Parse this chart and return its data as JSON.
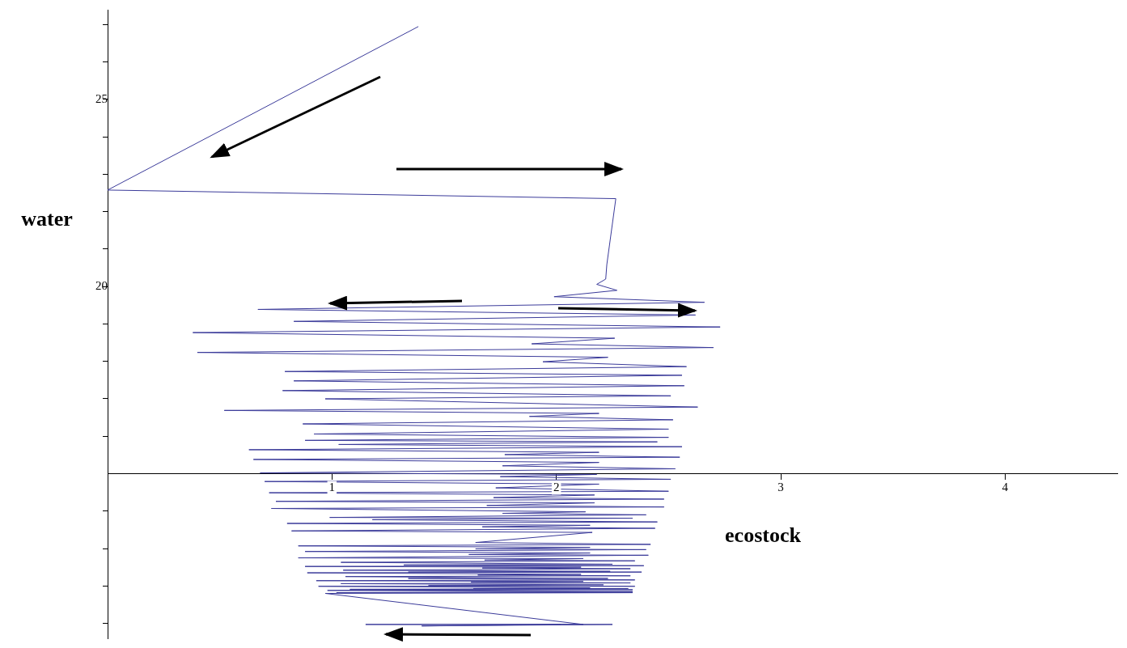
{
  "chart_data": {
    "type": "line",
    "xlabel": "ecostock",
    "ylabel": "water",
    "grid": false,
    "legend": false,
    "marker": "none",
    "line_style": "solid",
    "xlim": [
      0,
      4.5
    ],
    "ylim": [
      10.6,
      27.4
    ],
    "xticks": [
      1,
      2,
      3,
      4
    ],
    "yticks": [
      {
        "value": 11,
        "label": null
      },
      {
        "value": 12,
        "label": null
      },
      {
        "value": 13,
        "label": null
      },
      {
        "value": 14,
        "label": null
      },
      {
        "value": 16,
        "label": null
      },
      {
        "value": 17,
        "label": null
      },
      {
        "value": 18,
        "label": null
      },
      {
        "value": 19,
        "label": null
      },
      20,
      {
        "value": 21,
        "label": null
      },
      {
        "value": 22,
        "label": null
      },
      {
        "value": 23,
        "label": null
      },
      {
        "value": 24,
        "label": null
      },
      25,
      {
        "value": 26,
        "label": null
      },
      {
        "value": 27,
        "label": null
      }
    ],
    "series": [
      {
        "color": "#3b3b9a",
        "x": [
          1.385,
          0,
          2.265,
          2.225,
          2.22,
          2.18,
          2.27,
          1.99,
          2.66,
          0.67,
          2.62,
          0.83,
          2.73,
          0.38,
          2.26,
          1.89,
          2.7,
          0.4,
          2.23,
          1.94,
          2.58,
          0.79,
          2.56,
          0.83,
          2.57,
          0.78,
          2.51,
          0.97,
          2.63,
          0.52,
          2.19,
          1.88,
          2.52,
          0.87,
          2.5,
          0.92,
          2.5,
          0.88,
          2.45,
          1.03,
          2.56,
          0.63,
          2.19,
          1.77,
          2.55,
          0.65,
          2.19,
          1.76,
          2.53,
          0.68,
          2.18,
          1.75,
          2.51,
          0.7,
          2.19,
          1.73,
          2.5,
          0.72,
          2.17,
          1.72,
          2.48,
          0.75,
          2.17,
          1.69,
          2.48,
          0.73,
          2.13,
          1.76,
          2.4,
          0.99,
          2.34,
          1.18,
          2.45,
          0.8,
          2.15,
          1.67,
          2.44,
          0.82,
          2.16,
          1.64,
          2.42,
          0.85,
          2.15,
          1.64,
          2.4,
          0.88,
          2.15,
          1.61,
          2.41,
          0.85,
          2.12,
          1.68,
          2.35,
          1.04,
          2.25,
          1.32,
          2.39,
          0.88,
          2.11,
          1.67,
          2.33,
          1.05,
          2.24,
          1.34,
          2.38,
          0.89,
          2.11,
          1.65,
          2.33,
          1.06,
          2.23,
          1.34,
          2.35,
          0.93,
          2.12,
          1.62,
          2.33,
          1.04,
          2.21,
          1.43,
          2.35,
          0.94,
          2.15,
          1.63,
          2.32,
          1.08,
          2.34,
          0.98,
          2.34,
          1.02,
          2.34,
          0.97,
          2.12,
          1.15,
          2.25,
          1.4,
          2.02
        ],
        "values": [
          26.95,
          22.58,
          22.35,
          20.59,
          20.2,
          20.06,
          19.9,
          19.73,
          19.58,
          19.39,
          19.24,
          19.07,
          18.92,
          18.77,
          18.62,
          18.47,
          18.37,
          18.24,
          18.11,
          17.99,
          17.86,
          17.73,
          17.63,
          17.48,
          17.35,
          17.22,
          17.08,
          17.0,
          16.78,
          16.69,
          16.61,
          16.53,
          16.44,
          16.33,
          16.19,
          16.06,
          15.97,
          15.89,
          15.85,
          15.78,
          15.72,
          15.64,
          15.57,
          15.51,
          15.44,
          15.38,
          15.3,
          15.21,
          15.13,
          15.02,
          14.98,
          14.92,
          14.85,
          14.79,
          14.72,
          14.62,
          14.53,
          14.49,
          14.43,
          14.36,
          14.32,
          14.26,
          14.22,
          14.15,
          14.11,
          14.07,
          13.98,
          13.94,
          13.9,
          13.83,
          13.81,
          13.77,
          13.71,
          13.67,
          13.62,
          13.58,
          13.54,
          13.47,
          13.43,
          13.16,
          13.11,
          13.07,
          13.03,
          12.99,
          12.97,
          12.92,
          12.88,
          12.84,
          12.82,
          12.75,
          12.73,
          12.69,
          12.67,
          12.63,
          12.58,
          12.56,
          12.54,
          12.52,
          12.5,
          12.48,
          12.46,
          12.42,
          12.39,
          12.37,
          12.37,
          12.35,
          12.31,
          12.29,
          12.27,
          12.25,
          12.2,
          12.2,
          12.16,
          12.14,
          12.12,
          12.1,
          12.08,
          12.06,
          12.03,
          12.01,
          11.99,
          11.99,
          11.95,
          11.93,
          11.93,
          11.91,
          11.9,
          11.88,
          11.85,
          11.82,
          11.82,
          11.8,
          10.97,
          10.97,
          10.97,
          10.93,
          10.97
        ]
      }
    ]
  }
}
